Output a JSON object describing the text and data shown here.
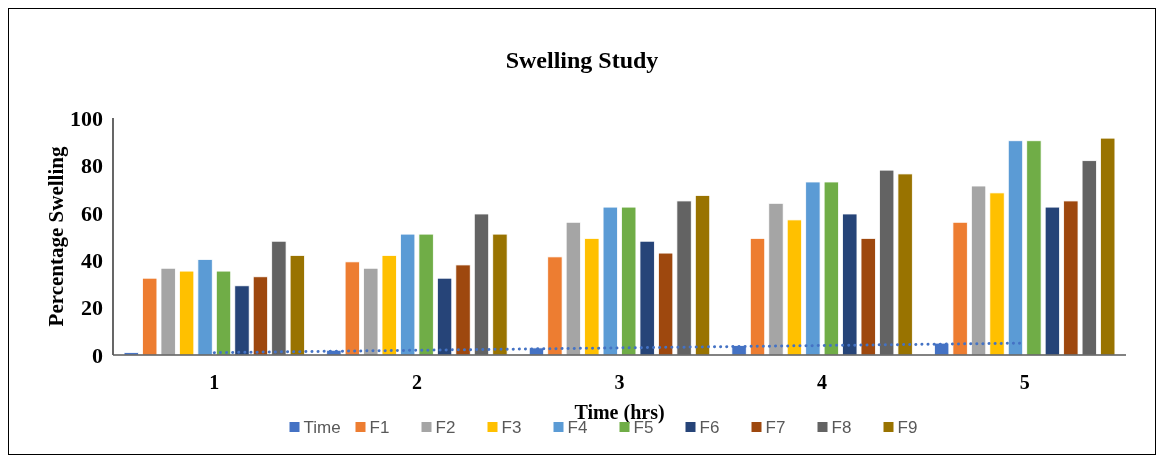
{
  "chart_data": {
    "type": "bar",
    "title": "Swelling Study",
    "xlabel": "Time (hrs)",
    "ylabel": "Percentage Swelling",
    "categories": [
      "1",
      "2",
      "3",
      "4",
      "5"
    ],
    "ylim": [
      0,
      100
    ],
    "yticks": [
      0,
      20,
      40,
      60,
      80,
      100
    ],
    "grid": false,
    "legend": "bottom",
    "series": [
      {
        "name": "Time",
        "color": "#4472c4",
        "values": [
          1,
          2,
          3,
          4,
          5
        ]
      },
      {
        "name": "F1",
        "color": "#ed7d31",
        "values": [
          32.4,
          39.3,
          41.4,
          49.2,
          56
        ]
      },
      {
        "name": "F2",
        "color": "#a5a5a5",
        "values": [
          36.6,
          36.6,
          56,
          64,
          71.3
        ]
      },
      {
        "name": "F3",
        "color": "#ffc000",
        "values": [
          35.4,
          42,
          49.2,
          57,
          68.4
        ]
      },
      {
        "name": "F4",
        "color": "#5b9bd5",
        "values": [
          40.3,
          51,
          62.4,
          73,
          90.4
        ]
      },
      {
        "name": "F5",
        "color": "#70ad47",
        "values": [
          35.4,
          51,
          62.4,
          73,
          90.4
        ]
      },
      {
        "name": "F6",
        "color": "#264478",
        "values": [
          29.2,
          32.4,
          48,
          59.5,
          62.4
        ]
      },
      {
        "name": "F7",
        "color": "#9e480e",
        "values": [
          33,
          38,
          43,
          49.2,
          65
        ]
      },
      {
        "name": "F8",
        "color": "#636363",
        "values": [
          48,
          59.5,
          65,
          78,
          82
        ]
      },
      {
        "name": "F9",
        "color": "#997300",
        "values": [
          42,
          51,
          67.3,
          76.4,
          91.5
        ]
      },
      {
        "type": "line",
        "color": "#4472c4",
        "line_style": "dotted",
        "values": [
          1,
          2,
          3,
          4,
          5
        ]
      }
    ]
  }
}
